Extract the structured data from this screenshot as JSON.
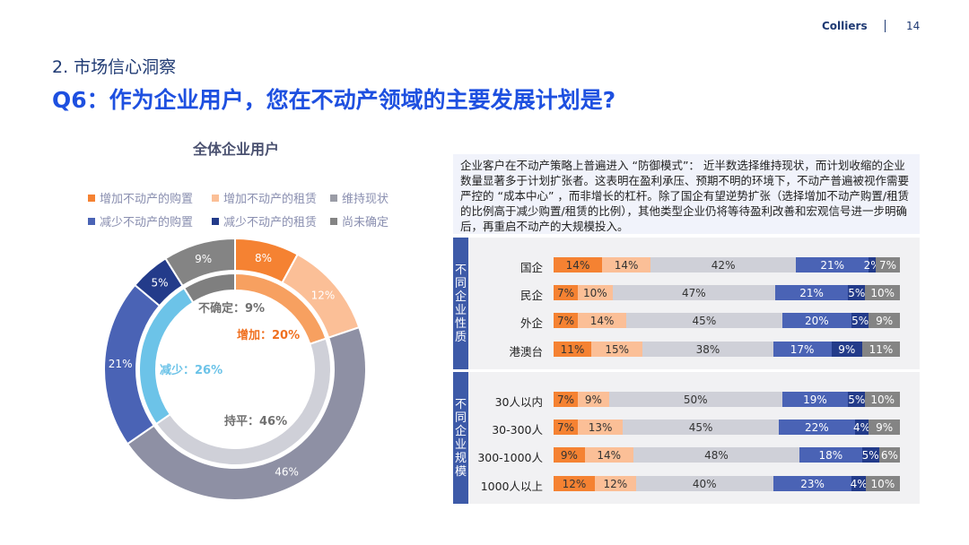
{
  "header": {
    "brand": "Colliers",
    "page": "14"
  },
  "section": "2. 市场信心洞察",
  "title": "Q6：作为企业用户，您在不动产领域的主要发展计划是?",
  "donut": {
    "title": "全体企业用户",
    "legend": [
      {
        "label": "增加不动产的购置",
        "color": "#f58232"
      },
      {
        "label": "增加不动产的租赁",
        "color": "#fbbf97"
      },
      {
        "label": "维持现状",
        "color": "#9a9ca6"
      },
      {
        "label": "减少不动产的购置",
        "color": "#4a63b5"
      },
      {
        "label": "减少不动产的租赁",
        "color": "#233b8a"
      },
      {
        "label": "尚未确定",
        "color": "#848484"
      }
    ],
    "outer": [
      {
        "value": 8,
        "label": "8%",
        "color": "#f58232"
      },
      {
        "value": 12,
        "label": "12%",
        "color": "#fbbf97"
      },
      {
        "value": 46,
        "label": "46%",
        "color": "#8e90a4"
      },
      {
        "value": 21,
        "label": "21%",
        "color": "#4a63b5"
      },
      {
        "value": 5,
        "label": "5%",
        "color": "#233b8a"
      },
      {
        "value": 9,
        "label": "9%",
        "color": "#848484"
      }
    ],
    "inner": [
      {
        "value": 20,
        "label": "增加：20%",
        "color": "#f7a060",
        "text_color": "#f07020"
      },
      {
        "value": 46,
        "label": "持平：46%",
        "color": "#cfd0d8",
        "text_color": "#707070"
      },
      {
        "value": 26,
        "label": "减少：26%",
        "color": "#6cc3e8",
        "text_color": "#6cc3e8"
      },
      {
        "value": 9,
        "label": "不确定：9%",
        "color": "#7f7f7f",
        "text_color": "#707070"
      }
    ]
  },
  "summary": "企业客户在不动产策略上普遍进入 “防御模式”： 近半数选择维持现状，而计划收缩的企业数量显著多于计划扩张者。这表明在盈利承压、预期不明的环境下，不动产普遍被视作需要严控的 “成本中心” ，而非增长的杠杆。除了国企有望逆势扩张（选择增加不动产购置/租赁的比例高于减少购置/租赁的比例），其他类型企业仍将等待盈利改善和宏观信号进一步明确后，再重启不动产的大规模投入。",
  "chart_data": {
    "type": "bar",
    "stacked": true,
    "orientation": "horizontal",
    "series_colors": [
      "#f58232",
      "#fbbf97",
      "#cfd0d8",
      "#4a63b5",
      "#233b8a",
      "#848484"
    ],
    "groups": [
      {
        "label": "不同企业性质",
        "categories": [
          "国企",
          "民企",
          "外企",
          "港澳台"
        ],
        "values": [
          [
            14,
            14,
            42,
            21,
            2,
            7
          ],
          [
            7,
            10,
            47,
            21,
            5,
            10
          ],
          [
            7,
            14,
            45,
            20,
            5,
            9
          ],
          [
            11,
            15,
            38,
            17,
            9,
            11
          ]
        ]
      },
      {
        "label": "不同企业规模",
        "categories": [
          "30人以内",
          "30-300人",
          "300-1000人",
          "1000人以上"
        ],
        "values": [
          [
            7,
            9,
            50,
            19,
            5,
            10
          ],
          [
            7,
            13,
            45,
            22,
            4,
            9
          ],
          [
            9,
            14,
            48,
            18,
            5,
            6
          ],
          [
            12,
            12,
            40,
            23,
            4,
            10
          ]
        ]
      }
    ]
  }
}
